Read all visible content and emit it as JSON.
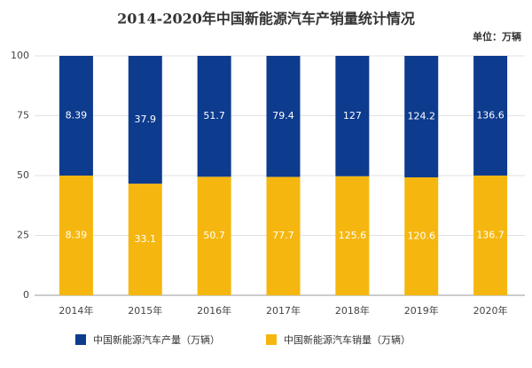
{
  "chart_data": {
    "type": "bar",
    "stacking": "percent",
    "title": "2014-2020年中国新能源汽车产销量统计情况",
    "subtitle": "单位：万辆",
    "categories": [
      "2014年",
      "2015年",
      "2016年",
      "2017年",
      "2018年",
      "2019年",
      "2020年"
    ],
    "series": [
      {
        "name": "中国新能源汽车产量（万辆）",
        "color": "#0d3b8e",
        "values": [
          8.39,
          37.9,
          51.7,
          79.4,
          127,
          124.2,
          136.6
        ]
      },
      {
        "name": "中国新能源汽车销量（万辆）",
        "color": "#f5b70f",
        "values": [
          8.39,
          33.1,
          50.7,
          77.7,
          125.6,
          120.6,
          136.7
        ]
      }
    ],
    "ylim": [
      0,
      100
    ],
    "yticks": [
      0,
      25,
      50,
      75,
      100
    ],
    "grid": true
  }
}
